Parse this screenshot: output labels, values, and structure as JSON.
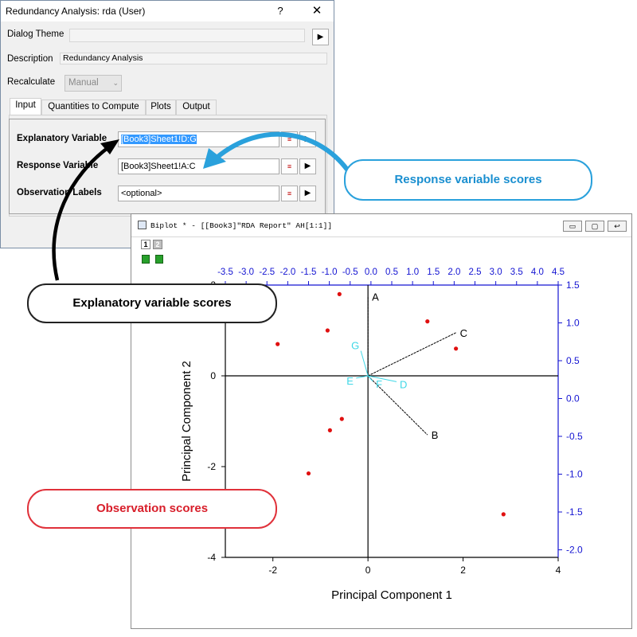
{
  "dialog": {
    "title": "Redundancy Analysis: rda (User)",
    "help_label": "?",
    "close_label": "✕",
    "dialog_theme_label": "Dialog Theme",
    "dialog_theme_value": "",
    "description_label": "Description",
    "description_value": "Redundancy Analysis",
    "recalculate_label": "Recalculate",
    "recalculate_value": "Manual",
    "tabs": [
      {
        "label": "Input"
      },
      {
        "label": "Quantities to Compute"
      },
      {
        "label": "Plots"
      },
      {
        "label": "Output"
      }
    ],
    "fields": [
      {
        "label": "Explanatory Variable",
        "value": "[Book3]Sheet1!D:G"
      },
      {
        "label": "Response Variable",
        "value": "[Book3]Sheet1!A:C"
      },
      {
        "label": "Observation Labels",
        "value": "<optional>"
      }
    ]
  },
  "graph_window": {
    "title": "Biplot * - [[Book3]\"RDA Report\" AH[1:1]]",
    "layer_1": "1",
    "layer_2": "2"
  },
  "callouts": {
    "response": "Response variable scores",
    "explanatory": "Explanatory variable scores",
    "observation": "Observation scores"
  },
  "colors": {
    "response_callout": "#2aa1dc",
    "observation_callout": "#e0313a",
    "top_right_axes": "#1414d2",
    "explanatory_vectors": "#3fd7e6",
    "points": "#e01010"
  },
  "chart_data": {
    "type": "scatter",
    "xlabel": "Principal Component 1",
    "ylabel": "Principal Component 2",
    "xlim": [
      -3,
      4
    ],
    "ylim": [
      -4,
      2
    ],
    "x_ticks": [
      "-2",
      "0",
      "2",
      "4"
    ],
    "y_ticks": [
      "2",
      "0",
      "-2",
      "-4"
    ],
    "top_axis_ticks": [
      "-3.5",
      "-3.0",
      "-2.5",
      "-2.0",
      "-1.5",
      "-1.0",
      "-0.5",
      "0.0",
      "0.5",
      "1.0",
      "1.5",
      "2.0",
      "2.5",
      "3.0",
      "3.5",
      "4.0",
      "4.5"
    ],
    "right_axis_ticks": [
      "1.5",
      "1.0",
      "0.5",
      "0.0",
      "-0.5",
      "-1.0",
      "-1.5",
      "-2.0"
    ],
    "top_xlim": [
      -3.5,
      4.5
    ],
    "right_ylim": [
      -2.1,
      1.5
    ],
    "observation_scores": [
      {
        "x": -1.9,
        "y": 0.7
      },
      {
        "x": -0.6,
        "y": 1.8
      },
      {
        "x": -0.85,
        "y": 1.0
      },
      {
        "x": 1.25,
        "y": 1.2
      },
      {
        "x": 1.85,
        "y": 0.6
      },
      {
        "x": -0.55,
        "y": -0.95
      },
      {
        "x": -0.8,
        "y": -1.2
      },
      {
        "x": -1.25,
        "y": -2.15
      },
      {
        "x": 2.85,
        "y": -3.05
      }
    ],
    "response_vectors": [
      {
        "label": "A",
        "x": 0.0,
        "y": 1.75
      },
      {
        "label": "B",
        "x": 1.25,
        "y": -1.3
      },
      {
        "label": "C",
        "x": 1.85,
        "y": 0.95
      }
    ],
    "explanatory_vectors": [
      {
        "label": "G",
        "x": -0.15,
        "y": 0.55
      },
      {
        "label": "E",
        "x": -0.25,
        "y": -0.05
      },
      {
        "label": "F",
        "x": 0.1,
        "y": -0.12
      },
      {
        "label": "D",
        "x": 0.6,
        "y": -0.13
      }
    ]
  }
}
